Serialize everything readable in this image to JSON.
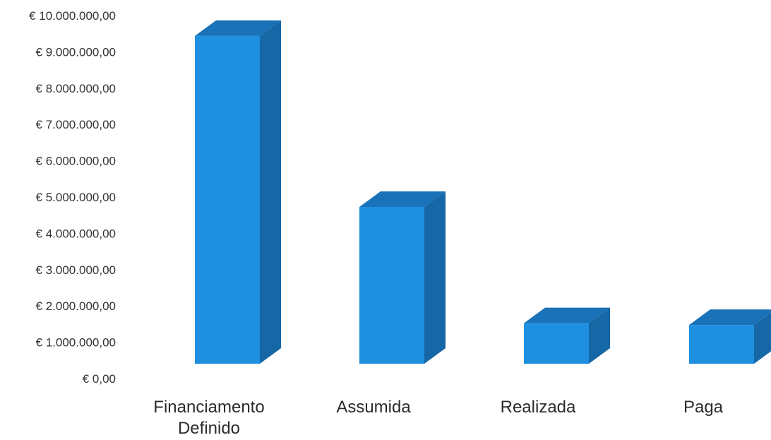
{
  "colors": {
    "bar_front": "#1f8fe0",
    "bar_top": "#1a72b8",
    "bar_side": "#1667a6",
    "axis_text": "#333333"
  },
  "chart_data": {
    "type": "bar",
    "style": "3d-column",
    "categories": [
      [
        "Financiamento",
        "Definido"
      ],
      [
        "Assumida"
      ],
      [
        "Realizada"
      ],
      [
        "Paga"
      ]
    ],
    "values": [
      9300000,
      4450000,
      1150000,
      1100000
    ],
    "ylim": [
      0,
      10000000
    ],
    "yticks": [
      0,
      1000000,
      2000000,
      3000000,
      4000000,
      5000000,
      6000000,
      7000000,
      8000000,
      9000000,
      10000000
    ],
    "ytick_labels": [
      "€ 0,00",
      "€ 1.000.000,00",
      "€ 2.000.000,00",
      "€ 3.000.000,00",
      "€ 4.000.000,00",
      "€ 5.000.000,00",
      "€ 6.000.000,00",
      "€ 7.000.000,00",
      "€ 8.000.000,00",
      "€ 9.000.000,00",
      "€ 10.000.000,00"
    ],
    "grid": false,
    "legend": "none"
  }
}
